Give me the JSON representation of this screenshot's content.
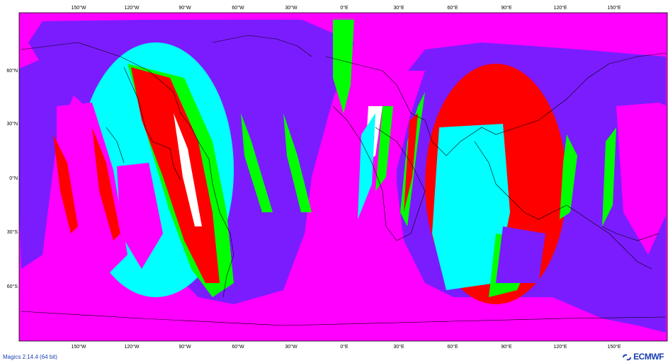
{
  "map": {
    "colors": {
      "purple": "#7b1cff",
      "magenta": "#ff00ff",
      "cyan": "#00ffff",
      "green": "#00ff00",
      "red": "#ff0000",
      "white": "#ffffff",
      "coast": "#000000"
    },
    "lon_ticks": [
      "150°W",
      "120°W",
      "90°W",
      "60°W",
      "30°W",
      "0°E",
      "30°E",
      "60°E",
      "90°E",
      "120°E",
      "150°E"
    ],
    "lat_ticks": [
      "60°N",
      "30°N",
      "0°N",
      "30°S",
      "60°S"
    ]
  },
  "footer": {
    "version": "Magics 2.14.4 (64 bit)",
    "logo": "ECMWF"
  }
}
